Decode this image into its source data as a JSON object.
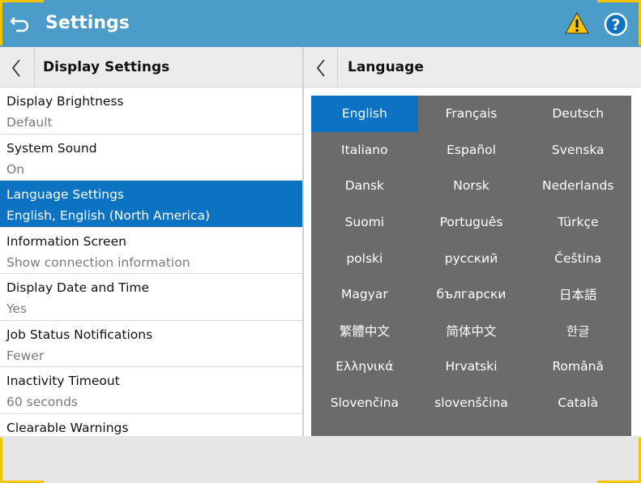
{
  "header": {
    "title": "Settings"
  },
  "left_panel": {
    "title": "Display Settings",
    "items": [
      {
        "label": "Display Brightness",
        "value": "Default"
      },
      {
        "label": "System Sound",
        "value": "On"
      },
      {
        "label": "Language Settings",
        "value": "English, English (North America)",
        "selected": true
      },
      {
        "label": "Information Screen",
        "value": "Show connection information"
      },
      {
        "label": "Display Date and Time",
        "value": "Yes"
      },
      {
        "label": "Job Status Notifications",
        "value": "Fewer"
      },
      {
        "label": "Inactivity Timeout",
        "value": "60 seconds"
      },
      {
        "label": "Clearable Warnings"
      }
    ]
  },
  "right_panel": {
    "title": "Language",
    "languages": [
      [
        "English",
        "Français",
        "Deutsch"
      ],
      [
        "Italiano",
        "Español",
        "Svenska"
      ],
      [
        "Dansk",
        "Norsk",
        "Nederlands"
      ],
      [
        "Suomi",
        "Português",
        "Türkçe"
      ],
      [
        "polski",
        "русский",
        "Čeština"
      ],
      [
        "Magyar",
        "български",
        "日本語"
      ],
      [
        "繁體中文",
        "简体中文",
        "한글"
      ],
      [
        "Ελληνικά",
        "Hrvatski",
        "Română"
      ],
      [
        "Slovenčina",
        "slovenščina",
        "Català"
      ]
    ],
    "selected": [
      0,
      0
    ]
  }
}
